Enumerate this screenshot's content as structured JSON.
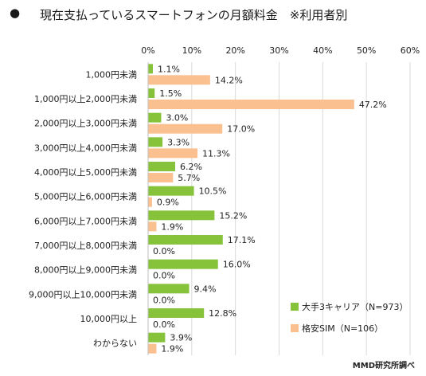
{
  "title": {
    "bullet": "●",
    "text": "現在支払っているスマートフォンの月額料金　※利用者別"
  },
  "credit": "MMD研究所調べ",
  "chart_data": {
    "type": "bar",
    "orientation": "horizontal",
    "categories": [
      "1,000円未満",
      "1,000円以上2,000円未満",
      "2,000円以上3,000円未満",
      "3,000円以上4,000円未満",
      "4,000円以上5,000円未満",
      "5,000円以上6,000円未満",
      "6,000円以上7,000円未満",
      "7,000円以上8,000円未満",
      "8,000円以上9,000円未満",
      "9,000円以上10,000円未満",
      "10,000円以上",
      "わからない"
    ],
    "series": [
      {
        "name": "大手3キャリア（N=973）",
        "color": "#86c33a",
        "values": [
          1.1,
          1.5,
          3.0,
          3.3,
          6.2,
          10.5,
          15.2,
          17.1,
          16.0,
          9.4,
          12.8,
          3.9
        ]
      },
      {
        "name": "格安SIM（N=106）",
        "color": "#fac090",
        "values": [
          14.2,
          47.2,
          17.0,
          11.3,
          5.7,
          0.9,
          1.9,
          0.0,
          0.0,
          0.0,
          0.0,
          1.9
        ]
      }
    ],
    "xlim": [
      0,
      60
    ],
    "xticks": [
      "0%",
      "10%",
      "20%",
      "30%",
      "40%",
      "50%",
      "60%"
    ],
    "value_suffix": "%",
    "grid": true,
    "legend": "bottom-right"
  }
}
